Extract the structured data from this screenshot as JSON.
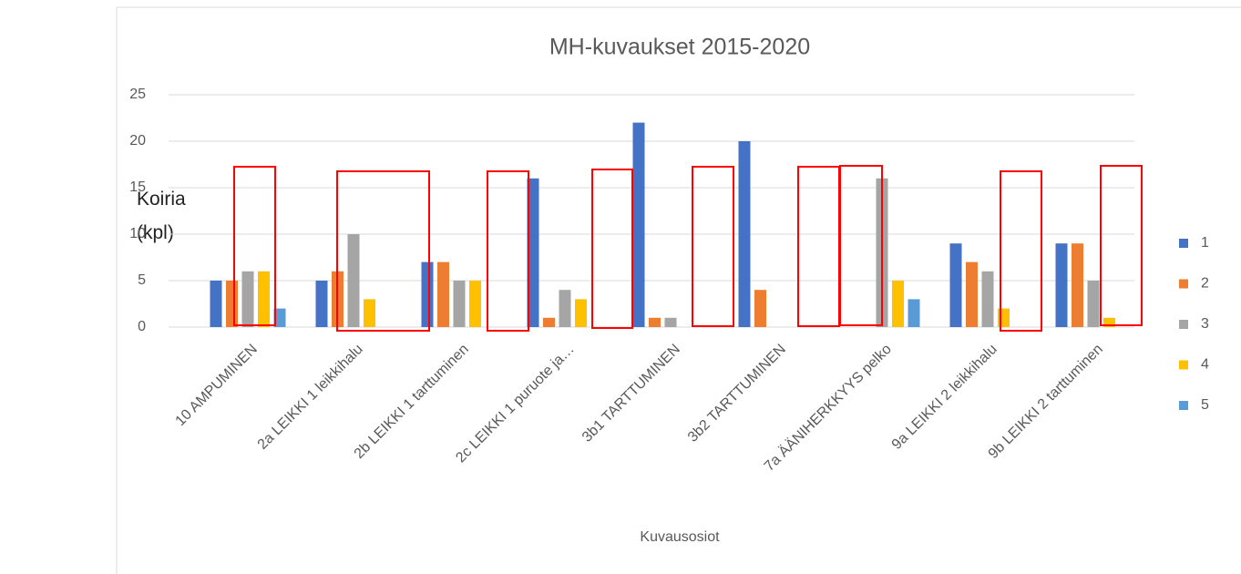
{
  "chart_data": {
    "type": "bar",
    "title": "MH-kuvaukset 2015-2020",
    "x_label": "Kuvausosiot",
    "y_label": "Koiria (kpl)",
    "categories": [
      "10 AMPUMINEN",
      "2a LEIKKI 1 leikkihalu",
      "2b LEIKKI 1 tarttuminen",
      "2c LEIKKI 1 puruote ja…",
      "3b1 TARTTUMINEN",
      "3b2 TARTTUMINEN",
      "7a ÄÄNIHERKKYYS pelko",
      "9a LEIKKI 2 leikkihalu",
      "9b LEIKKI 2 tarttuminen"
    ],
    "series": [
      {
        "name": "1",
        "color": "#4472c4",
        "values": [
          5,
          5,
          7,
          16,
          22,
          20,
          null,
          9,
          9
        ]
      },
      {
        "name": "2",
        "color": "#ed7d31",
        "values": [
          5,
          6,
          7,
          1,
          1,
          4,
          null,
          7,
          9
        ]
      },
      {
        "name": "3",
        "color": "#a5a5a5",
        "values": [
          6,
          10,
          5,
          4,
          1,
          null,
          16,
          6,
          5
        ]
      },
      {
        "name": "4",
        "color": "#ffc000",
        "values": [
          6,
          3,
          5,
          3,
          null,
          null,
          5,
          2,
          1
        ]
      },
      {
        "name": "5",
        "color": "#5b9bd5",
        "values": [
          2,
          null,
          null,
          null,
          null,
          null,
          3,
          null,
          null
        ]
      }
    ],
    "ylim": [
      0,
      25
    ],
    "yticks": [
      0,
      5,
      10,
      15,
      20,
      25
    ],
    "grid": true,
    "legend": "right"
  }
}
